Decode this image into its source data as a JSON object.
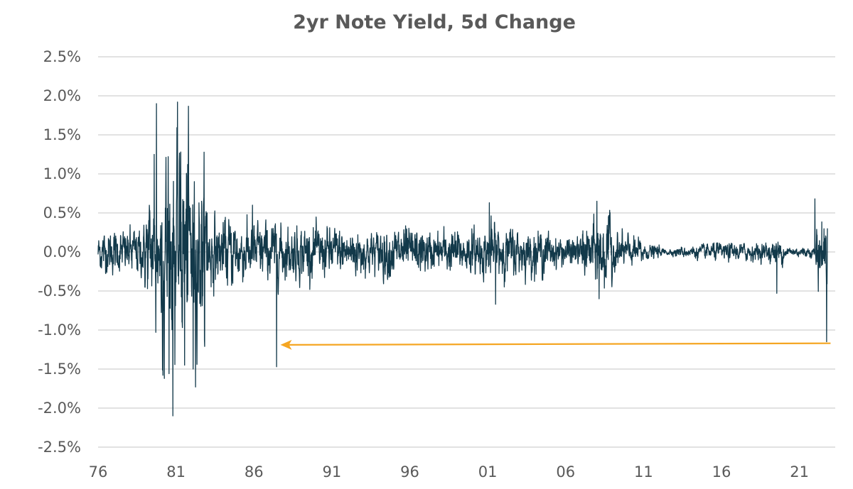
{
  "chart_data": {
    "type": "line",
    "title": "2yr Note Yield, 5d Change",
    "xlabel": "",
    "ylabel": "",
    "ylim": [
      -2.5,
      2.5
    ],
    "xlim": [
      1976,
      2023.3
    ],
    "grid": true,
    "legend": "none",
    "y_ticks": [
      "2.5%",
      "2.0%",
      "1.5%",
      "1.0%",
      "0.5%",
      "0.0%",
      "-0.5%",
      "-1.0%",
      "-1.5%",
      "-2.0%",
      "-2.5%"
    ],
    "y_tick_values": [
      2.5,
      2.0,
      1.5,
      1.0,
      0.5,
      0.0,
      -0.5,
      -1.0,
      -1.5,
      -2.0,
      -2.5
    ],
    "x_ticks": [
      "76",
      "81",
      "86",
      "91",
      "96",
      "01",
      "06",
      "11",
      "16",
      "21"
    ],
    "x_tick_values": [
      1976,
      1981,
      1986,
      1991,
      1996,
      2001,
      2006,
      2011,
      2016,
      2021
    ],
    "series": [
      {
        "name": "2yr Note Yield 5d Change (%)",
        "color": "#12394a",
        "data_range": [
          1976,
          2022.8
        ],
        "volatility_by_year": {
          "1976": 0.12,
          "1977": 0.12,
          "1978": 0.14,
          "1979": 0.3,
          "1980": 0.6,
          "1981": 0.6,
          "1982": 0.45,
          "1983": 0.2,
          "1984": 0.2,
          "1985": 0.17,
          "1986": 0.17,
          "1987": 0.17,
          "1988": 0.15,
          "1989": 0.15,
          "1990": 0.14,
          "1991": 0.14,
          "1992": 0.14,
          "1993": 0.12,
          "1994": 0.15,
          "1995": 0.14,
          "1996": 0.13,
          "1997": 0.11,
          "1998": 0.13,
          "1999": 0.12,
          "2000": 0.13,
          "2001": 0.17,
          "2002": 0.14,
          "2003": 0.13,
          "2004": 0.12,
          "2005": 0.09,
          "2006": 0.08,
          "2007": 0.16,
          "2008": 0.22,
          "2009": 0.1,
          "2010": 0.08,
          "2011": 0.04,
          "2012": 0.02,
          "2013": 0.03,
          "2014": 0.04,
          "2015": 0.05,
          "2016": 0.05,
          "2017": 0.05,
          "2018": 0.05,
          "2019": 0.07,
          "2020": 0.03,
          "2021": 0.03,
          "2022": 0.2
        },
        "notable_points": [
          [
            1979.75,
            1.9
          ],
          [
            1979.6,
            1.25
          ],
          [
            1980.25,
            -1.62
          ],
          [
            1980.8,
            -2.1
          ],
          [
            1980.5,
            1.22
          ],
          [
            1981.3,
            1.28
          ],
          [
            1981.75,
            1.12
          ],
          [
            1981.55,
            -1.45
          ],
          [
            1982.25,
            -1.73
          ],
          [
            1982.1,
            -1.5
          ],
          [
            1979.7,
            -1.03
          ],
          [
            1983.0,
            0.5
          ],
          [
            1987.45,
            -1.47
          ],
          [
            1985.9,
            0.6
          ],
          [
            2001.1,
            0.63
          ],
          [
            2001.5,
            -0.67
          ],
          [
            2008.0,
            0.65
          ],
          [
            2008.15,
            -0.6
          ],
          [
            2019.55,
            -0.53
          ],
          [
            2022.0,
            0.68
          ],
          [
            2022.75,
            -1.15
          ]
        ]
      }
    ],
    "annotations": [
      {
        "type": "arrow",
        "color": "#f5a623",
        "from": [
          2023.0,
          -1.17
        ],
        "to": [
          1987.7,
          -1.19
        ]
      }
    ]
  }
}
